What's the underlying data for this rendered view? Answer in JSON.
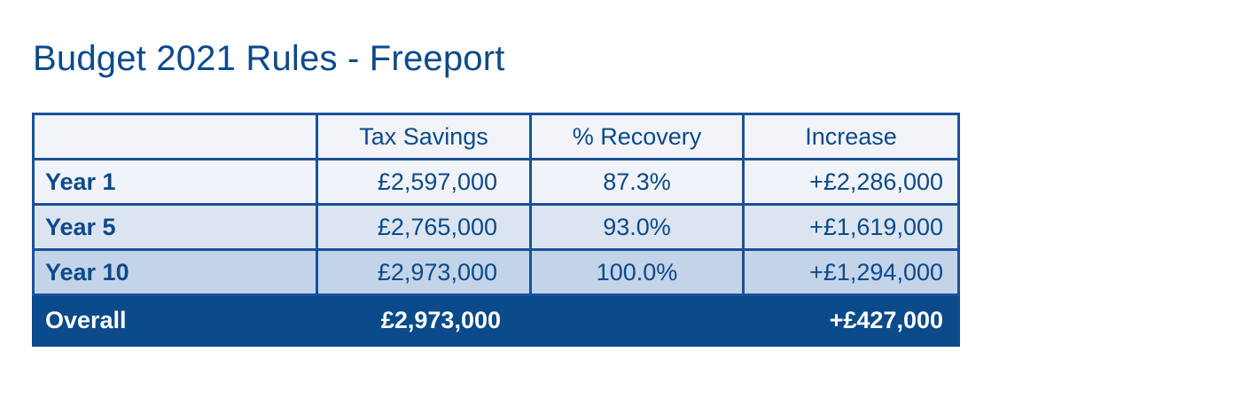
{
  "title": "Budget 2021 Rules - Freeport",
  "chart_data": {
    "type": "table",
    "title": "Budget 2021 Rules - Freeport",
    "columns": [
      "",
      "Tax Savings",
      "% Recovery",
      "Increase"
    ],
    "rows": [
      {
        "label": "Year 1",
        "tax_savings": "£2,597,000",
        "recovery": "87.3%",
        "increase": "+£2,286,000"
      },
      {
        "label": "Year 5",
        "tax_savings": "£2,765,000",
        "recovery": "93.0%",
        "increase": "+£1,619,000"
      },
      {
        "label": "Year 10",
        "tax_savings": "£2,973,000",
        "recovery": "100.0%",
        "increase": "+£1,294,000"
      }
    ],
    "total": {
      "label": "Overall",
      "tax_savings": "£2,973,000",
      "recovery": "",
      "increase": "+£427,000"
    }
  },
  "colors": {
    "text": "#0b4a8b",
    "border": "#1a519a",
    "header_bg": "#f2f4fa",
    "row1_bg": "#f0f3f9",
    "row2_bg": "#dbe4f0",
    "row3_bg": "#c3d3e8",
    "total_bg": "#0b4a8b",
    "total_text": "#ffffff"
  }
}
